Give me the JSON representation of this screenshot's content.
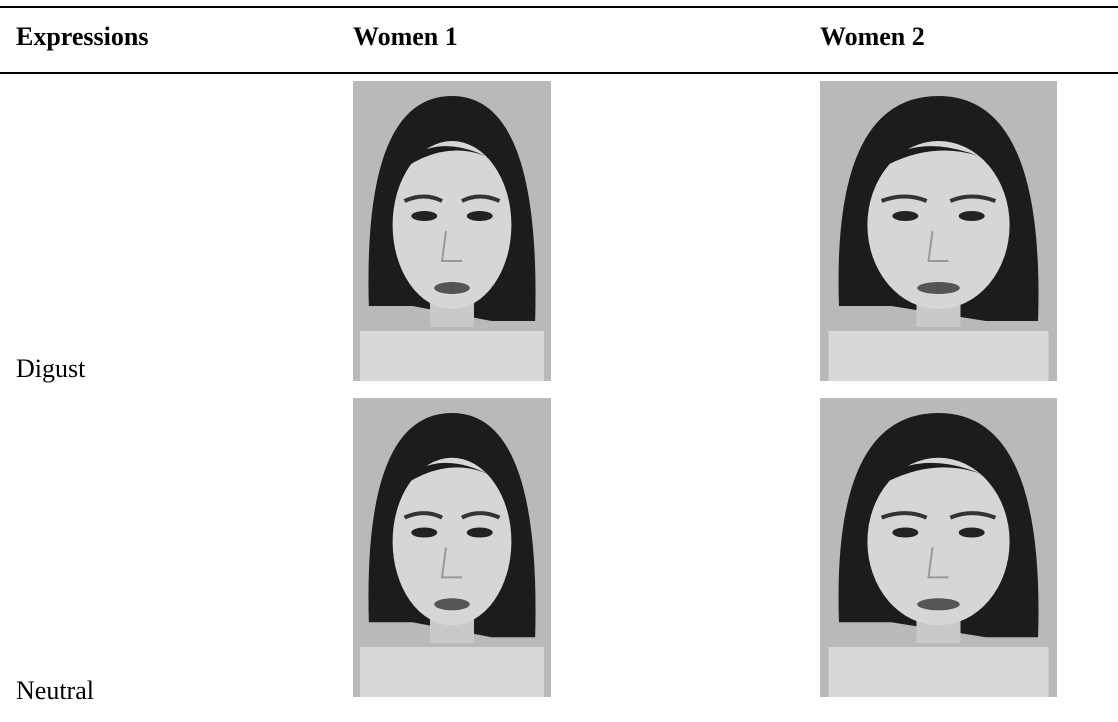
{
  "table": {
    "header": [
      "Expressions",
      "Women 1",
      "Women 2"
    ],
    "rows": [
      [
        "Digust"
      ],
      [
        "Neutral"
      ]
    ]
  }
}
